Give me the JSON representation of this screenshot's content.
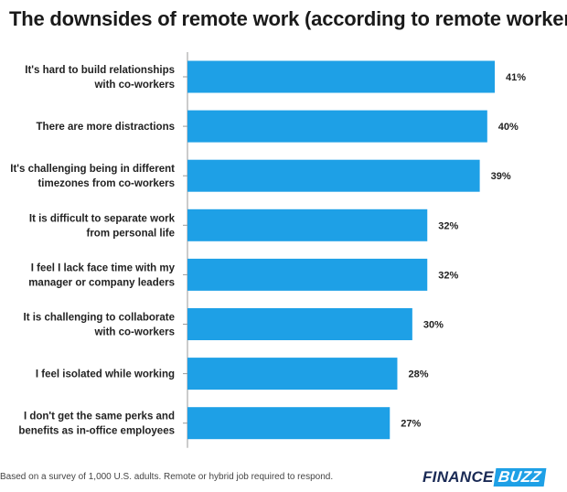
{
  "title": "The downsides of remote work (according to remote workers)",
  "footnote": "Based on a survey of 1,000 U.S. adults. Remote or hybrid job required to respond.",
  "brand": {
    "part1": "FINANCE",
    "part2": "BUZZ"
  },
  "colors": {
    "bar": "#1ea0e6",
    "brand_accent": "#1ea0e6",
    "brand_dark": "#1a2a55"
  },
  "chart_data": {
    "type": "bar",
    "orientation": "horizontal",
    "title": "The downsides of remote work (according to remote workers)",
    "categories": [
      [
        "It's hard to build relationships",
        "with co-workers"
      ],
      [
        "There are more distractions"
      ],
      [
        "It's challenging being in different",
        "timezones from co-workers"
      ],
      [
        "It is difficult to separate work",
        "from personal life"
      ],
      [
        "I feel I lack face time with my",
        "manager or company leaders"
      ],
      [
        "It is challenging to collaborate",
        "with co-workers"
      ],
      [
        "I feel isolated while working"
      ],
      [
        "I don't get the same perks and",
        "benefits as in-office employees"
      ]
    ],
    "values": [
      41,
      40,
      39,
      32,
      32,
      30,
      28,
      27
    ],
    "value_labels": [
      "41%",
      "40%",
      "39%",
      "32%",
      "32%",
      "30%",
      "28%",
      "27%"
    ],
    "xlim": [
      0,
      41
    ],
    "grid": false,
    "legend": "none"
  }
}
